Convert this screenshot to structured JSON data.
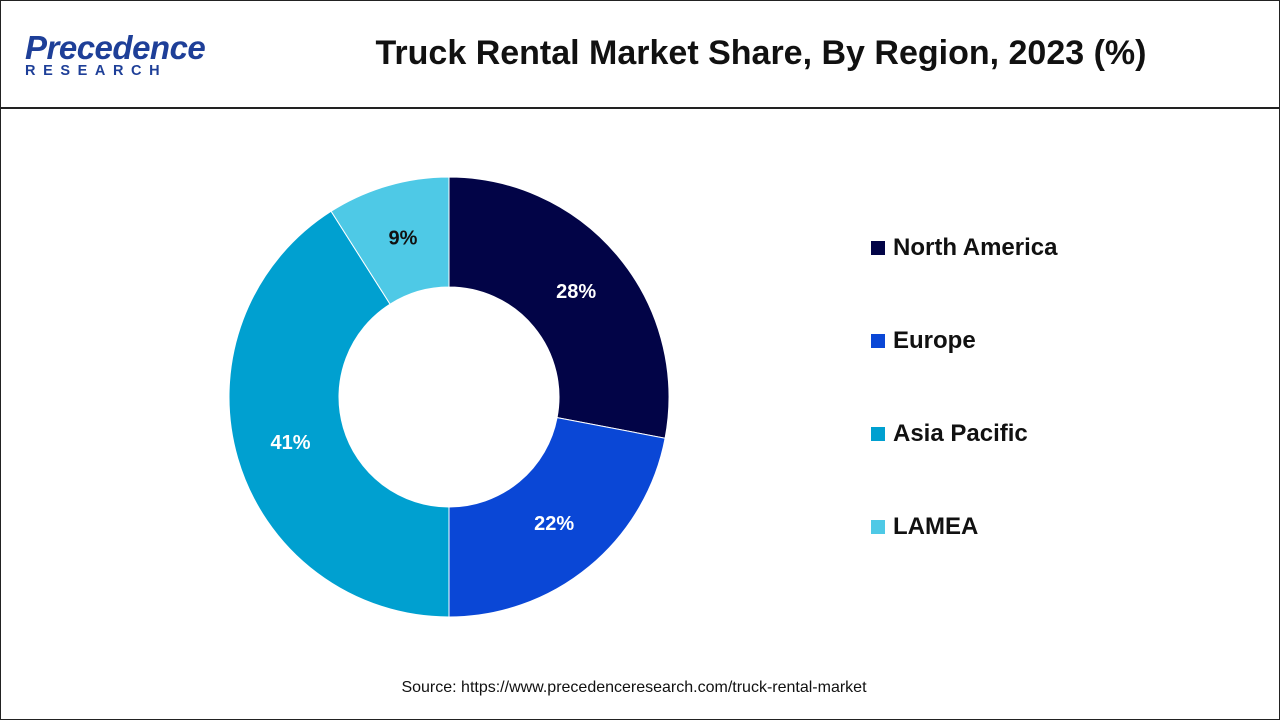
{
  "header": {
    "logo_word": "Precedence",
    "logo_sub": "RESEARCH",
    "title": "Truck Rental Market Share, By Region, 2023 (%)"
  },
  "chart_data": {
    "type": "pie",
    "variant": "donut",
    "title": "Truck Rental Market Share, By Region, 2023 (%)",
    "categories": [
      "North America",
      "Europe",
      "Asia Pacific",
      "LAMEA"
    ],
    "values": [
      28,
      22,
      41,
      9
    ],
    "labels": [
      "28%",
      "22%",
      "41%",
      "9%"
    ],
    "colors": [
      "#020447",
      "#0a47d6",
      "#00a0d0",
      "#4ec9e6"
    ],
    "label_colors": [
      "#ffffff",
      "#ffffff",
      "#ffffff",
      "#111111"
    ],
    "legend_position": "right",
    "start": "top, clockwise"
  },
  "source": "Source: https://www.precedenceresearch.com/truck-rental-market"
}
